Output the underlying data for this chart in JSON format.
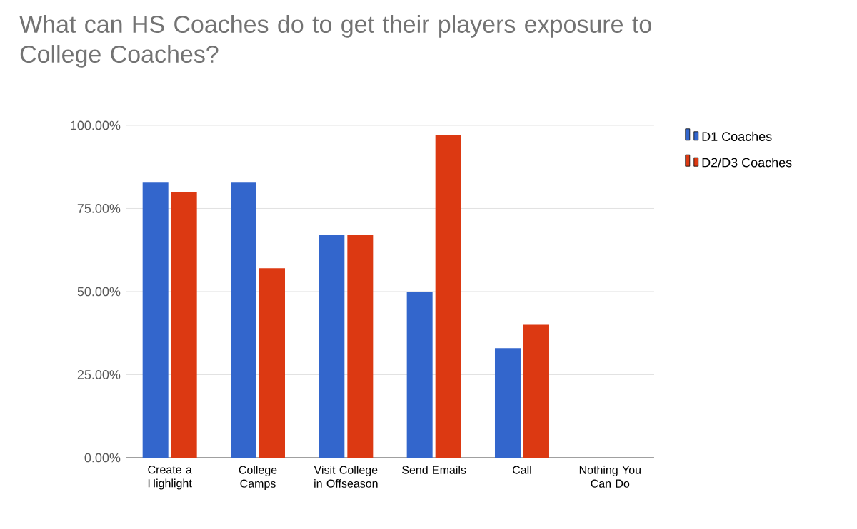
{
  "chart_data": {
    "type": "bar",
    "title": "What can HS Coaches do to get their players exposure to College Coaches?",
    "categories": [
      "Create a Highlight",
      "College Camps",
      "Visit College in Offseason",
      "Send Emails",
      "Call",
      "Nothing You Can Do"
    ],
    "series": [
      {
        "name": "D1 Coaches",
        "color": "#3366cc",
        "values": [
          83,
          83,
          67,
          50,
          33,
          0
        ]
      },
      {
        "name": "D2/D3 Coaches",
        "color": "#dc3912",
        "values": [
          80,
          57,
          67,
          97,
          40,
          0
        ]
      }
    ],
    "ylim": [
      0,
      100
    ],
    "yticks": [
      {
        "value": 0,
        "label": "0.00%"
      },
      {
        "value": 25,
        "label": "25.00%"
      },
      {
        "value": 50,
        "label": "50.00%"
      },
      {
        "value": 75,
        "label": "75.00%"
      },
      {
        "value": 100,
        "label": "100.00%"
      }
    ],
    "grid": "y",
    "legend": "top right"
  }
}
